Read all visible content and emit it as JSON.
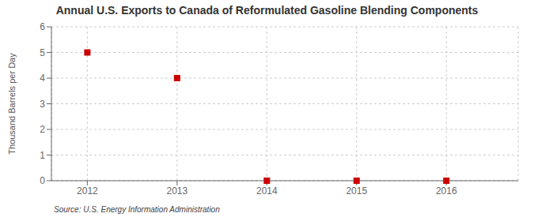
{
  "chart_data": {
    "type": "scatter",
    "title": "Annual U.S. Exports to Canada of Reformulated Gasoline Blending Components",
    "ylabel": "Thousand Barrels per Day",
    "source": "Source: U.S. Energy Information Administration",
    "x": [
      2012,
      2013,
      2014,
      2015,
      2016
    ],
    "values": [
      5,
      4,
      0,
      0,
      0
    ],
    "color": "#cc0000",
    "marker": "square",
    "xlim": [
      2011.6,
      2016.8
    ],
    "xticks": [
      2012,
      2013,
      2014,
      2015,
      2016
    ],
    "ylim": [
      0,
      6
    ],
    "yticks": [
      0,
      1,
      2,
      3,
      4,
      5,
      6
    ],
    "grid": true
  }
}
